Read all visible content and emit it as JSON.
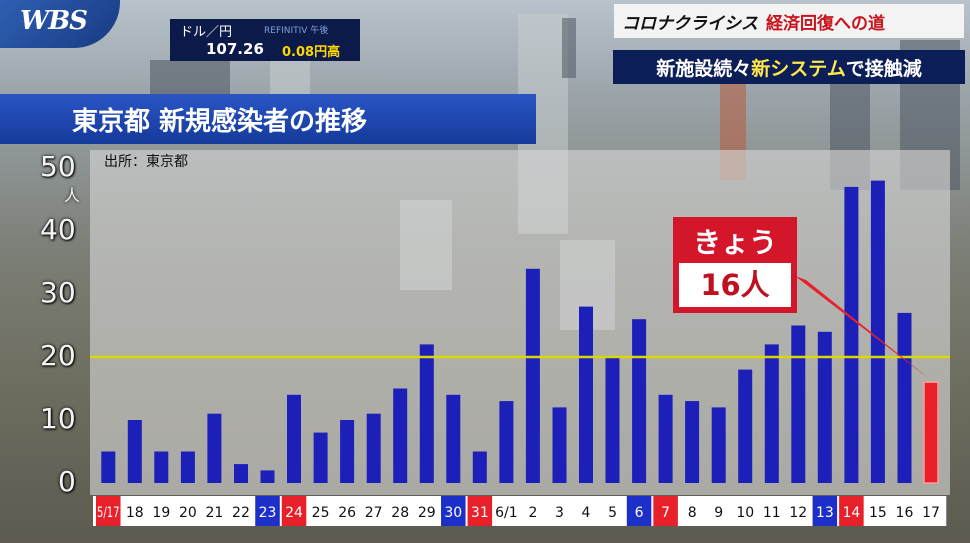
{
  "logo": "WBS",
  "fx": {
    "pair": "ドル／円",
    "source": "REFINITIV  午後",
    "rate": "107.26",
    "change": "0.08円高"
  },
  "series_title": {
    "part1": "コロナクライシス",
    "part2": "経済回復への道"
  },
  "headline": {
    "part1": "新施設続々 ",
    "part2": "新システム",
    "part3": "で接触減"
  },
  "chart_title": "東京都 新規感染者の推移",
  "chart_data": {
    "type": "bar",
    "title": "東京都 新規感染者の推移",
    "source": "出所：東京都",
    "ylabel": "人",
    "ylim": [
      0,
      50
    ],
    "yticks": [
      0,
      10,
      20,
      30,
      40,
      50
    ],
    "reference_line": 20,
    "categories": [
      "5/17",
      "18",
      "19",
      "20",
      "21",
      "22",
      "23",
      "24",
      "25",
      "26",
      "27",
      "28",
      "29",
      "30",
      "31",
      "6/1",
      "2",
      "3",
      "4",
      "5",
      "6",
      "7",
      "8",
      "9",
      "10",
      "11",
      "12",
      "13",
      "14",
      "15",
      "16",
      "17"
    ],
    "values": [
      5,
      10,
      5,
      5,
      11,
      3,
      2,
      14,
      8,
      10,
      11,
      15,
      22,
      14,
      5,
      13,
      34,
      12,
      28,
      20,
      26,
      14,
      13,
      12,
      18,
      22,
      25,
      24,
      47,
      48,
      27,
      16
    ],
    "highlight_index": 31,
    "colors": {
      "bar": "#1c1fb8",
      "highlight": "#e8202a",
      "refline": "#d8d800"
    },
    "label_colors": {
      "red": [
        "5/17",
        "24",
        "31",
        "7",
        "14"
      ],
      "blue": [
        "23",
        "30",
        "6",
        "13"
      ]
    },
    "annotation": {
      "label": "きょう",
      "value": "16人"
    }
  }
}
